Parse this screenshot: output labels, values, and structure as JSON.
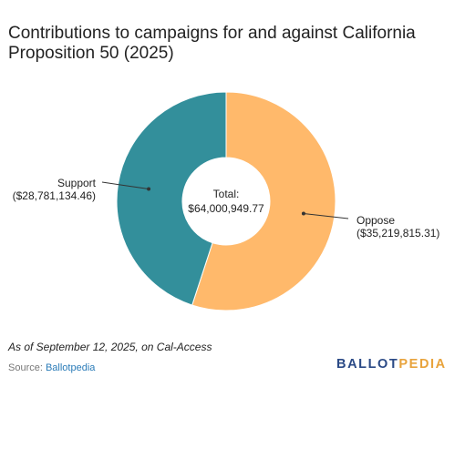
{
  "title": "Contributions to campaigns for and against California Proposition 50 (2025)",
  "chart_data": {
    "type": "pie",
    "style": "donut",
    "slices": [
      {
        "name": "Oppose",
        "value": 35219815.31,
        "value_label": "($35,219,815.31)",
        "color": "#FFB96B"
      },
      {
        "name": "Support",
        "value": 28781134.46,
        "value_label": "($28,781,134.46)",
        "color": "#338F9B"
      }
    ],
    "center_label": "Total:",
    "center_value": "$64,000,949.77"
  },
  "note": "As of September 12, 2025, on Cal-Access",
  "source": {
    "prefix": "Source: ",
    "name": "Ballotpedia"
  },
  "logo": {
    "part1": "BALLOT",
    "part2": "PEDIA"
  }
}
